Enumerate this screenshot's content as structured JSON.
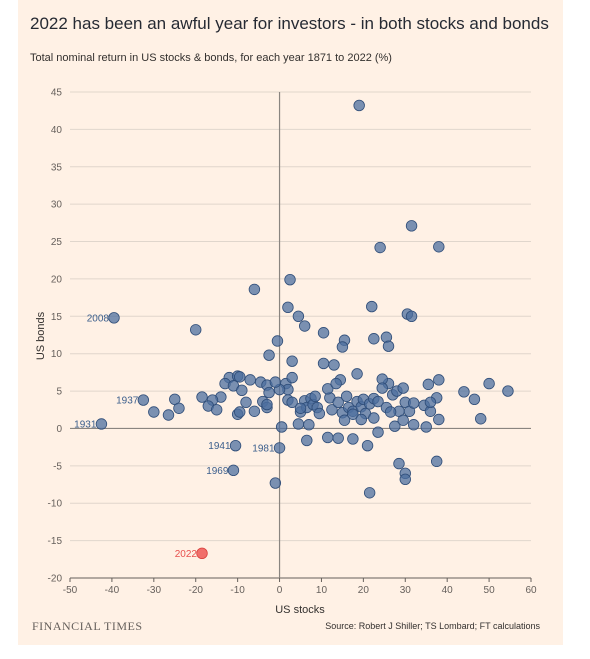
{
  "header": {
    "title": "2022 has been an awful year for investors - in both stocks and bonds",
    "subtitle": "Total nominal return in US stocks & bonds, for each year 1871 to 2022 (%)"
  },
  "footer": {
    "brand": "FINANCIAL TIMES",
    "source": "Source: Robert J Shiller; TS Lombard; FT calculations"
  },
  "chart_data": {
    "type": "scatter",
    "xlabel": "US stocks",
    "ylabel": "US bonds",
    "xlim": [
      -50,
      60
    ],
    "ylim": [
      -20,
      45
    ],
    "xticks": [
      -50,
      -40,
      -30,
      -20,
      -10,
      0,
      10,
      20,
      30,
      40,
      50,
      60
    ],
    "yticks": [
      -20,
      -15,
      -10,
      -5,
      0,
      5,
      10,
      15,
      20,
      25,
      30,
      35,
      40,
      45
    ],
    "grid": true,
    "colors": {
      "points": "#4d6f9f",
      "point_stroke": "#2f4d78",
      "highlight": "#f0605d",
      "axis_zero": "#8a8580",
      "grid": "#e0d6cc"
    },
    "labeled_points": [
      {
        "label": "2008",
        "x": -39.5,
        "y": 14.8,
        "highlight": false
      },
      {
        "label": "1937",
        "x": -32.5,
        "y": 3.8,
        "highlight": false
      },
      {
        "label": "1931",
        "x": -42.5,
        "y": 0.6,
        "highlight": false
      },
      {
        "label": "1941",
        "x": -10.5,
        "y": -2.3,
        "highlight": false
      },
      {
        "label": "1981",
        "x": 0,
        "y": -2.6,
        "highlight": false
      },
      {
        "label": "1969",
        "x": -11,
        "y": -5.6,
        "highlight": false
      },
      {
        "label": "2022",
        "x": -18.5,
        "y": -16.7,
        "highlight": true
      }
    ],
    "points": [
      [
        19,
        43.2
      ],
      [
        31.5,
        27.1
      ],
      [
        38,
        24.3
      ],
      [
        24,
        24.2
      ],
      [
        2.5,
        19.9
      ],
      [
        -6,
        18.6
      ],
      [
        -20,
        13.2
      ],
      [
        2,
        16.2
      ],
      [
        22,
        16.3
      ],
      [
        4.5,
        15
      ],
      [
        30.5,
        15.3
      ],
      [
        31.5,
        15
      ],
      [
        6,
        13.7
      ],
      [
        10.5,
        12.8
      ],
      [
        -0.5,
        11.7
      ],
      [
        15.5,
        11.8
      ],
      [
        15,
        10.9
      ],
      [
        22.5,
        12
      ],
      [
        25.5,
        12.2
      ],
      [
        26,
        11
      ],
      [
        -2.5,
        9.8
      ],
      [
        3,
        9
      ],
      [
        10.5,
        8.7
      ],
      [
        13,
        8.5
      ],
      [
        18.5,
        7.3
      ],
      [
        14.5,
        6.5
      ],
      [
        26,
        6
      ],
      [
        24.5,
        6.6
      ],
      [
        35.5,
        5.9
      ],
      [
        38,
        6.5
      ],
      [
        -12,
        6.8
      ],
      [
        -10,
        7
      ],
      [
        -9.5,
        6.9
      ],
      [
        -7,
        6.5
      ],
      [
        -4.5,
        6.2
      ],
      [
        -3,
        5.8
      ],
      [
        1.5,
        6
      ],
      [
        2,
        5.2
      ],
      [
        3,
        6.8
      ],
      [
        -13,
        6
      ],
      [
        -11,
        5.7
      ],
      [
        -9,
        5.1
      ],
      [
        -14,
        4.2
      ],
      [
        -16,
        3.8
      ],
      [
        -18.5,
        4.2
      ],
      [
        -25,
        3.9
      ],
      [
        -24,
        2.7
      ],
      [
        -26.5,
        1.8
      ],
      [
        -30,
        2.2
      ],
      [
        -17,
        3
      ],
      [
        -15,
        2.5
      ],
      [
        -10,
        1.9
      ],
      [
        -9.5,
        2.2
      ],
      [
        -8,
        3.5
      ],
      [
        -6,
        2.3
      ],
      [
        -4,
        3.6
      ],
      [
        -3,
        2.8
      ],
      [
        -2.5,
        4.8
      ],
      [
        0,
        5.2
      ],
      [
        2,
        3.8
      ],
      [
        3,
        3.5
      ],
      [
        5,
        2.2
      ],
      [
        6,
        3.7
      ],
      [
        6.5,
        2.8
      ],
      [
        7.5,
        4
      ],
      [
        8,
        3.2
      ],
      [
        9,
        2.8
      ],
      [
        12,
        4.1
      ],
      [
        12.5,
        2.5
      ],
      [
        14,
        3.5
      ],
      [
        15,
        2.1
      ],
      [
        16,
        4.3
      ],
      [
        16.5,
        2.8
      ],
      [
        17.5,
        2.3
      ],
      [
        18.5,
        3.6
      ],
      [
        19.5,
        2.9
      ],
      [
        20,
        3.9
      ],
      [
        20.5,
        2
      ],
      [
        21.5,
        3.3
      ],
      [
        22.5,
        4
      ],
      [
        23.5,
        3.6
      ],
      [
        24.5,
        5.4
      ],
      [
        25.5,
        2.8
      ],
      [
        27,
        4.5
      ],
      [
        28,
        5
      ],
      [
        28.5,
        2.3
      ],
      [
        29.5,
        5.4
      ],
      [
        30,
        3.5
      ],
      [
        31,
        2.3
      ],
      [
        32,
        3.4
      ],
      [
        34.5,
        3.1
      ],
      [
        36,
        2.3
      ],
      [
        37.5,
        4.1
      ],
      [
        38,
        1.2
      ],
      [
        44,
        4.9
      ],
      [
        46.5,
        3.9
      ],
      [
        48,
        1.3
      ],
      [
        50,
        6
      ],
      [
        54.5,
        5
      ],
      [
        0.5,
        0.2
      ],
      [
        4.5,
        0.6
      ],
      [
        7,
        0.5
      ],
      [
        11.5,
        -1.2
      ],
      [
        14,
        -1.3
      ],
      [
        17.5,
        -1.4
      ],
      [
        21,
        -2.3
      ],
      [
        23.5,
        -0.5
      ],
      [
        27.5,
        0.3
      ],
      [
        28.5,
        -4.7
      ],
      [
        30,
        -6
      ],
      [
        30,
        -6.8
      ],
      [
        35,
        0.2
      ],
      [
        37.5,
        -4.4
      ],
      [
        6.5,
        -1.6
      ],
      [
        -1,
        -7.3
      ],
      [
        21.5,
        -8.6
      ],
      [
        -3,
        3.2
      ],
      [
        -1,
        6.2
      ],
      [
        8.5,
        4.3
      ],
      [
        11.5,
        5.3
      ],
      [
        13.5,
        6
      ],
      [
        17.5,
        1.9
      ],
      [
        19.5,
        1.2
      ],
      [
        22.5,
        1.4
      ],
      [
        26.5,
        2.2
      ],
      [
        29.5,
        1.1
      ],
      [
        32,
        0.5
      ],
      [
        36,
        3.5
      ],
      [
        5,
        2.7
      ],
      [
        9.5,
        2
      ],
      [
        15.5,
        1.1
      ]
    ]
  }
}
